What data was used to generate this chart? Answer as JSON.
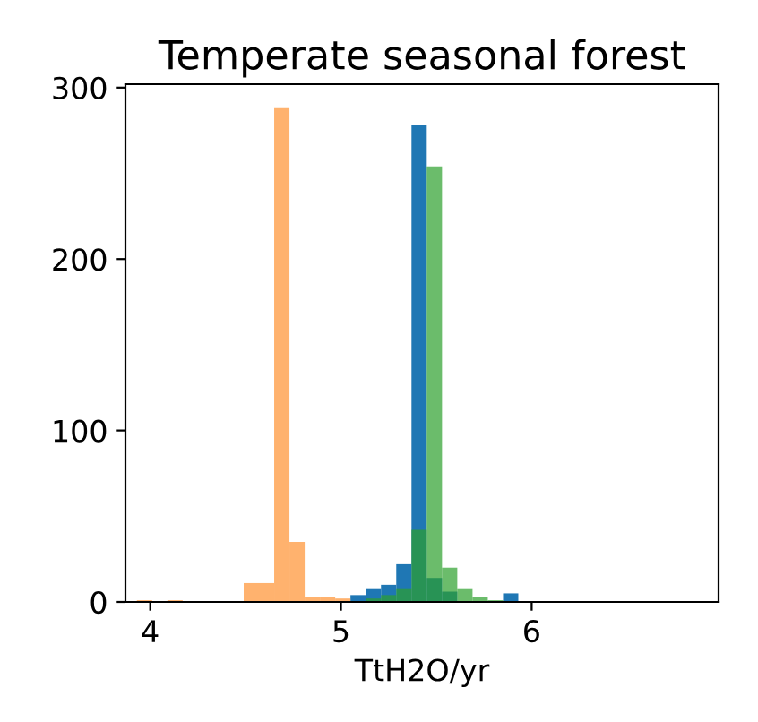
{
  "chart_data": {
    "type": "histogram",
    "title": "Temperate seasonal forest",
    "xlabel": "TtH2O/yr",
    "bins": [
      3.93,
      4.01,
      4.09,
      4.17,
      4.25,
      4.33,
      4.41,
      4.49,
      4.57,
      4.65,
      4.73,
      4.81,
      4.89,
      4.97,
      5.05,
      5.13,
      5.21,
      5.29,
      5.37,
      5.45,
      5.53,
      5.61,
      5.69,
      5.77,
      5.85,
      5.93,
      6.01
    ],
    "series": [
      {
        "color": "#1f77b4",
        "values": [
          0,
          0,
          0,
          0,
          0,
          0,
          0,
          0,
          0,
          0,
          0,
          0,
          0,
          0,
          4,
          8,
          10,
          22,
          278,
          14,
          6,
          null,
          null,
          0,
          5,
          0
        ]
      },
      {
        "color": "#ff7f0e",
        "values": [
          1,
          0,
          1,
          0,
          0,
          0,
          0,
          11,
          11,
          288,
          35,
          3,
          3,
          2,
          0,
          0,
          0,
          0,
          0,
          0,
          0,
          0,
          0,
          0,
          0,
          0
        ]
      },
      {
        "color": "#2ca02c",
        "values": [
          0,
          0,
          0,
          0,
          0,
          0,
          0,
          0,
          0,
          0,
          0,
          0,
          0,
          0,
          0,
          2,
          4,
          8,
          42,
          254,
          20,
          8,
          3,
          1,
          0,
          0
        ]
      }
    ],
    "xlim": [
      3.87,
      6.98
    ],
    "ylim": [
      0,
      302
    ],
    "xticks": [
      4,
      5,
      6
    ],
    "yticks": [
      0,
      100,
      200,
      300
    ]
  }
}
